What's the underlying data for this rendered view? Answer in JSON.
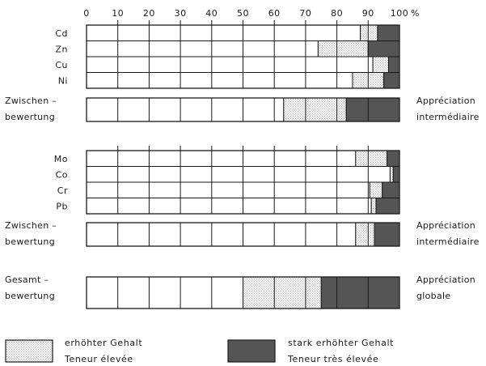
{
  "chart_data": {
    "type": "bar",
    "orientation": "horizontal-stacked",
    "x_unit": "%",
    "xlim": [
      0,
      100
    ],
    "x_ticks": [
      0,
      10,
      20,
      30,
      40,
      50,
      60,
      70,
      80,
      90,
      100
    ],
    "segments": [
      {
        "key": "normal",
        "label": "",
        "fill": "white"
      },
      {
        "key": "elevated",
        "label_de": "erhöhter Gehalt",
        "label_fr": "Teneur élevée",
        "fill": "dotted"
      },
      {
        "key": "strongly_elevated",
        "label_de": "stark erhöhter Gehalt",
        "label_fr": "Teneur très élevée",
        "fill": "dark"
      }
    ],
    "groups": [
      {
        "rows": [
          {
            "label": "Cd",
            "values": [
              87.5,
              5.5,
              7.0
            ]
          },
          {
            "label": "Zn",
            "values": [
              74.0,
              16.0,
              10.0
            ]
          },
          {
            "label": "Cu",
            "values": [
              91.5,
              5.0,
              3.5
            ]
          },
          {
            "label": "Ni",
            "values": [
              85.0,
              10.0,
              5.0
            ]
          }
        ],
        "summary": {
          "label_de": [
            "Zwischen –",
            "bewertung"
          ],
          "label_fr": [
            "Appréciation",
            "intermédiaire"
          ],
          "values": [
            63.0,
            20.0,
            17.0
          ]
        }
      },
      {
        "rows": [
          {
            "label": "Mo",
            "values": [
              86.0,
              10.0,
              4.0
            ]
          },
          {
            "label": "Co",
            "values": [
              97.0,
              1.0,
              2.0
            ]
          },
          {
            "label": "Cr",
            "values": [
              90.5,
              4.0,
              5.5
            ]
          },
          {
            "label": "Pb",
            "values": [
              91.0,
              1.5,
              7.5
            ]
          }
        ],
        "summary": {
          "label_de": [
            "Zwischen –",
            "bewertung"
          ],
          "label_fr": [
            "Appréciation",
            "intermédiaire"
          ],
          "values": [
            86.0,
            6.0,
            8.0
          ]
        }
      }
    ],
    "total": {
      "label_de": [
        "Gesamt –",
        "bewertung"
      ],
      "label_fr": [
        "Appréciation",
        "globale"
      ],
      "values": [
        50.0,
        25.0,
        25.0
      ]
    },
    "legend": {
      "elevated": [
        "erhöhter  Gehalt",
        "Teneur élevée"
      ],
      "strongly_elevated": [
        "stark  erhöhter  Gehalt",
        "Teneur  très  élevée"
      ]
    },
    "colors": {
      "ink": "#1a1a1a",
      "dark_fill": "#555555",
      "dot": "#777777"
    }
  }
}
